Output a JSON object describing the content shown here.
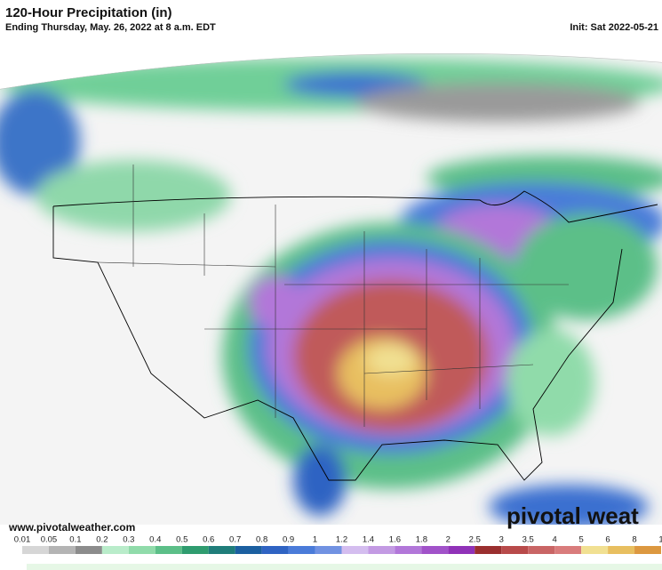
{
  "header": {
    "title": "120-Hour Precipitation (in)",
    "subtitle": "Ending Thursday, May. 26, 2022 at 8 a.m. EDT",
    "init": "Init: Sat 2022-05-21"
  },
  "map": {
    "source": "www.pivotalweather.com",
    "logo": "pivotal weat"
  },
  "legend": {
    "labels": [
      "0.01",
      "0.05",
      "0.1",
      "0.2",
      "0.3",
      "0.4",
      "0.5",
      "0.6",
      "0.7",
      "0.8",
      "0.9",
      "1",
      "1.2",
      "1.4",
      "1.6",
      "1.8",
      "2",
      "2.5",
      "3",
      "3.5",
      "4",
      "5",
      "6",
      "8",
      "1"
    ],
    "colors": [
      "#d6d6d6",
      "#b4b4b4",
      "#8c8c8c",
      "#b9ecca",
      "#90dbaa",
      "#5cbf88",
      "#2f9c6f",
      "#1f7d7a",
      "#1b5fa0",
      "#2f63c3",
      "#4a7bd9",
      "#7192e2",
      "#d4bdef",
      "#c39ae3",
      "#b277d9",
      "#a152c9",
      "#9032b8",
      "#9a2f2f",
      "#b84a4a",
      "#c96565",
      "#d97c7c",
      "#f1e092",
      "#e8bf60",
      "#dc9840"
    ]
  }
}
